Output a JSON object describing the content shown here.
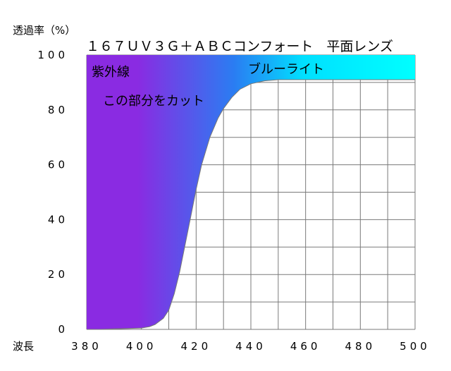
{
  "chart_data": {
    "type": "area",
    "title": "１６７ＵＶ３Ｇ＋ＡＢＣコンフォート　平面レンズ",
    "ylabel": "透過率（%）",
    "xlabel": "波長",
    "xlim": [
      380,
      500
    ],
    "ylim": [
      0,
      100
    ],
    "x_ticks": [
      380,
      400,
      420,
      440,
      460,
      480,
      500
    ],
    "y_ticks": [
      0,
      20,
      40,
      60,
      80,
      100
    ],
    "grid": true,
    "x": [
      380,
      385,
      390,
      395,
      400,
      403,
      405,
      408,
      410,
      412,
      414,
      416,
      418,
      420,
      422,
      425,
      428,
      430,
      433,
      436,
      440,
      445,
      450,
      460,
      470,
      480,
      490,
      500
    ],
    "values": [
      0,
      0,
      0.2,
      0.3,
      0.5,
      1,
      1.8,
      4,
      7,
      13,
      21,
      31,
      41,
      51,
      60,
      70,
      77,
      80.5,
      84.5,
      87.5,
      89.5,
      90.6,
      91,
      91,
      91,
      91,
      91,
      91
    ],
    "regions": [
      {
        "label": "紫外線",
        "from": 380,
        "to": 400,
        "color": "#8a2be2"
      },
      {
        "label": "ブルーライト",
        "from": 400,
        "to": 500,
        "color": "#00ffff"
      }
    ],
    "annotations": [
      "この部分をカット"
    ]
  }
}
